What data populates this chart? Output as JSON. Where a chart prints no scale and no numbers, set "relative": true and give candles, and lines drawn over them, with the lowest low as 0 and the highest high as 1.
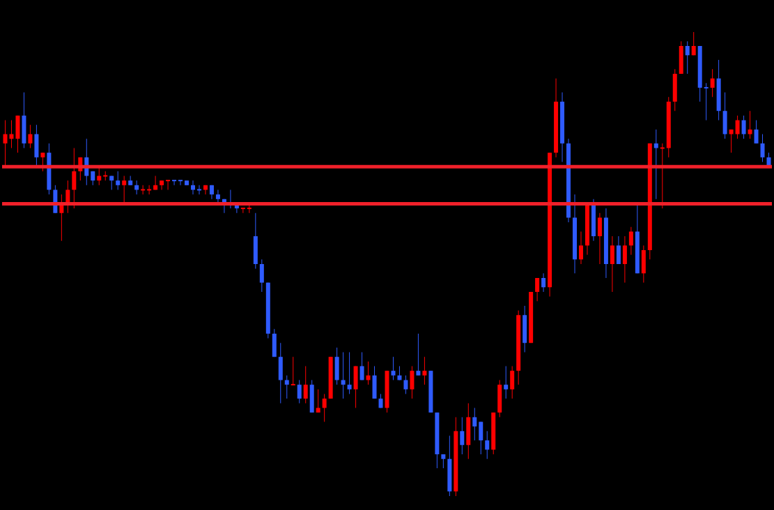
{
  "chart_data": {
    "type": "candlestick",
    "relative": true,
    "tick_labels": false,
    "categories": [
      null,
      null,
      null,
      null,
      null,
      null,
      null,
      null,
      null,
      null,
      null,
      null,
      null,
      null,
      null,
      null,
      null,
      null,
      null,
      null,
      null,
      null,
      null,
      null,
      null,
      null,
      null,
      null,
      null,
      null,
      null,
      null,
      null,
      null,
      null,
      null,
      null,
      null,
      null,
      null,
      null,
      null,
      null,
      null,
      null,
      null,
      null,
      null,
      null,
      null,
      null,
      null,
      null,
      null,
      null,
      null,
      null,
      null,
      null,
      null,
      null,
      null,
      null,
      null,
      null,
      null,
      null,
      null,
      null,
      null,
      null,
      null,
      null,
      null,
      null,
      null,
      null,
      null,
      null,
      null,
      null,
      null,
      null,
      null,
      null,
      null,
      null,
      null,
      null,
      null,
      null,
      null,
      null,
      null,
      null,
      null,
      null,
      null,
      null,
      null,
      null,
      null,
      null,
      null,
      null,
      null,
      null,
      null,
      null,
      null,
      null,
      null,
      null,
      null,
      null,
      null,
      null,
      null,
      null,
      null,
      null,
      null,
      null
    ],
    "ohlc": [
      [
        0.76,
        0.81,
        0.71,
        0.78
      ],
      [
        0.77,
        0.81,
        0.75,
        0.78
      ],
      [
        0.77,
        0.82,
        0.74,
        0.82
      ],
      [
        0.82,
        0.87,
        0.75,
        0.76
      ],
      [
        0.76,
        0.8,
        0.75,
        0.78
      ],
      [
        0.78,
        0.8,
        0.71,
        0.73
      ],
      [
        0.73,
        0.74,
        0.7,
        0.74
      ],
      [
        0.74,
        0.76,
        0.65,
        0.66
      ],
      [
        0.66,
        0.67,
        0.61,
        0.61
      ],
      [
        0.61,
        0.65,
        0.55,
        0.63
      ],
      [
        0.63,
        0.68,
        0.61,
        0.66
      ],
      [
        0.66,
        0.75,
        0.62,
        0.7
      ],
      [
        0.7,
        0.73,
        0.68,
        0.73
      ],
      [
        0.73,
        0.77,
        0.67,
        0.69
      ],
      [
        0.7,
        0.7,
        0.67,
        0.68
      ],
      [
        0.68,
        0.71,
        0.67,
        0.69
      ],
      [
        0.69,
        0.7,
        0.68,
        0.69
      ],
      [
        0.69,
        0.69,
        0.66,
        0.68
      ],
      [
        0.68,
        0.7,
        0.66,
        0.67
      ],
      [
        0.67,
        0.69,
        0.63,
        0.68
      ],
      [
        0.68,
        0.69,
        0.67,
        0.67
      ],
      [
        0.67,
        0.68,
        0.65,
        0.66
      ],
      [
        0.66,
        0.67,
        0.65,
        0.66
      ],
      [
        0.66,
        0.67,
        0.65,
        0.66
      ],
      [
        0.66,
        0.69,
        0.66,
        0.67
      ],
      [
        0.67,
        0.68,
        0.66,
        0.68
      ],
      [
        0.68,
        0.68,
        0.66,
        0.68
      ],
      [
        0.68,
        0.68,
        0.67,
        0.68
      ],
      [
        0.68,
        0.68,
        0.67,
        0.68
      ],
      [
        0.68,
        0.68,
        0.67,
        0.67
      ],
      [
        0.67,
        0.68,
        0.65,
        0.66
      ],
      [
        0.66,
        0.67,
        0.65,
        0.66
      ],
      [
        0.66,
        0.67,
        0.65,
        0.67
      ],
      [
        0.67,
        0.67,
        0.64,
        0.65
      ],
      [
        0.65,
        0.66,
        0.63,
        0.64
      ],
      [
        0.64,
        0.64,
        0.61,
        0.63
      ],
      [
        0.63,
        0.66,
        0.62,
        0.63
      ],
      [
        0.63,
        0.63,
        0.61,
        0.62
      ],
      [
        0.62,
        0.62,
        0.61,
        0.62
      ],
      [
        0.62,
        0.63,
        0.61,
        0.62
      ],
      [
        0.56,
        0.61,
        0.49,
        0.5
      ],
      [
        0.5,
        0.51,
        0.44,
        0.46
      ],
      [
        0.46,
        0.46,
        0.34,
        0.35
      ],
      [
        0.35,
        0.36,
        0.3,
        0.3
      ],
      [
        0.3,
        0.33,
        0.2,
        0.25
      ],
      [
        0.25,
        0.26,
        0.21,
        0.24
      ],
      [
        0.24,
        0.3,
        0.24,
        0.24
      ],
      [
        0.24,
        0.25,
        0.2,
        0.21
      ],
      [
        0.21,
        0.28,
        0.2,
        0.24
      ],
      [
        0.24,
        0.25,
        0.18,
        0.18
      ],
      [
        0.18,
        0.23,
        0.18,
        0.19
      ],
      [
        0.19,
        0.22,
        0.16,
        0.21
      ],
      [
        0.21,
        0.3,
        0.21,
        0.3
      ],
      [
        0.3,
        0.32,
        0.24,
        0.25
      ],
      [
        0.25,
        0.31,
        0.21,
        0.24
      ],
      [
        0.24,
        0.31,
        0.22,
        0.23
      ],
      [
        0.23,
        0.28,
        0.19,
        0.28
      ],
      [
        0.28,
        0.31,
        0.25,
        0.25
      ],
      [
        0.25,
        0.29,
        0.24,
        0.26
      ],
      [
        0.26,
        0.28,
        0.21,
        0.21
      ],
      [
        0.21,
        0.22,
        0.19,
        0.19
      ],
      [
        0.19,
        0.27,
        0.18,
        0.27
      ],
      [
        0.27,
        0.3,
        0.25,
        0.26
      ],
      [
        0.26,
        0.28,
        0.25,
        0.25
      ],
      [
        0.25,
        0.26,
        0.22,
        0.23
      ],
      [
        0.23,
        0.28,
        0.21,
        0.27
      ],
      [
        0.27,
        0.35,
        0.26,
        0.26
      ],
      [
        0.26,
        0.3,
        0.24,
        0.27
      ],
      [
        0.27,
        0.27,
        0.18,
        0.18
      ],
      [
        0.18,
        0.18,
        0.06,
        0.09
      ],
      [
        0.09,
        0.09,
        0.06,
        0.08
      ],
      [
        0.08,
        0.13,
        0,
        0.01
      ],
      [
        0.01,
        0.17,
        0,
        0.14
      ],
      [
        0.14,
        0.17,
        0.09,
        0.11
      ],
      [
        0.11,
        0.2,
        0.08,
        0.17
      ],
      [
        0.17,
        0.19,
        0.12,
        0.15
      ],
      [
        0.16,
        0.16,
        0.09,
        0.12
      ],
      [
        0.12,
        0.14,
        0.08,
        0.1
      ],
      [
        0.1,
        0.18,
        0.09,
        0.18
      ],
      [
        0.18,
        0.25,
        0.17,
        0.24
      ],
      [
        0.24,
        0.28,
        0.21,
        0.23
      ],
      [
        0.23,
        0.28,
        0.21,
        0.27
      ],
      [
        0.27,
        0.4,
        0.24,
        0.39
      ],
      [
        0.39,
        0.41,
        0.31,
        0.33
      ],
      [
        0.33,
        0.44,
        0.33,
        0.44
      ],
      [
        0.44,
        0.47,
        0.42,
        0.47
      ],
      [
        0.47,
        0.48,
        0.44,
        0.45
      ],
      [
        0.45,
        0.74,
        0.43,
        0.74
      ],
      [
        0.74,
        0.9,
        0.73,
        0.85
      ],
      [
        0.85,
        0.87,
        0.72,
        0.76
      ],
      [
        0.76,
        0.77,
        0.59,
        0.6
      ],
      [
        0.6,
        0.65,
        0.48,
        0.51
      ],
      [
        0.51,
        0.57,
        0.5,
        0.54
      ],
      [
        0.54,
        0.63,
        0.52,
        0.63
      ],
      [
        0.63,
        0.64,
        0.55,
        0.56
      ],
      [
        0.56,
        0.61,
        0.5,
        0.6
      ],
      [
        0.6,
        0.62,
        0.47,
        0.5
      ],
      [
        0.5,
        0.56,
        0.44,
        0.54
      ],
      [
        0.54,
        0.56,
        0.5,
        0.5
      ],
      [
        0.5,
        0.56,
        0.46,
        0.54
      ],
      [
        0.54,
        0.58,
        0.52,
        0.57
      ],
      [
        0.57,
        0.63,
        0.48,
        0.48
      ],
      [
        0.48,
        0.54,
        0.46,
        0.53
      ],
      [
        0.53,
        0.76,
        0.51,
        0.76
      ],
      [
        0.76,
        0.79,
        0.64,
        0.75
      ],
      [
        0.75,
        0.76,
        0.62,
        0.75
      ],
      [
        0.75,
        0.86,
        0.73,
        0.85
      ],
      [
        0.85,
        0.92,
        0.83,
        0.91
      ],
      [
        0.91,
        0.98,
        0.91,
        0.97
      ],
      [
        0.97,
        0.98,
        0.91,
        0.95
      ],
      [
        0.95,
        1,
        0.95,
        0.97
      ],
      [
        0.97,
        0.97,
        0.85,
        0.88
      ],
      [
        0.88,
        0.89,
        0.81,
        0.88
      ],
      [
        0.88,
        0.92,
        0.86,
        0.9
      ],
      [
        0.9,
        0.94,
        0.81,
        0.83
      ],
      [
        0.83,
        0.87,
        0.77,
        0.78
      ],
      [
        0.78,
        0.79,
        0.74,
        0.79
      ],
      [
        0.78,
        0.82,
        0.77,
        0.81
      ],
      [
        0.81,
        0.82,
        0.77,
        0.78
      ],
      [
        0.78,
        0.83,
        0.77,
        0.79
      ],
      [
        0.79,
        0.81,
        0.76,
        0.76
      ],
      [
        0.76,
        0.78,
        0.72,
        0.73
      ],
      [
        0.73,
        0.74,
        0.71,
        0.71
      ]
    ],
    "colors": [
      "#ff0000",
      "#ff0000",
      "#ff0000",
      "#2f5bff",
      "#ff0000",
      "#2f5bff",
      "#ff0000",
      "#2f5bff",
      "#2f5bff",
      "#ff0000",
      "#ff0000",
      "#ff0000",
      "#ff0000",
      "#2f5bff",
      "#2f5bff",
      "#ff0000",
      "#ff0000",
      "#2f5bff",
      "#2f5bff",
      "#ff0000",
      "#2f5bff",
      "#2f5bff",
      "#ff0000",
      "#ff0000",
      "#ff0000",
      "#ff0000",
      "#ff0000",
      "#2f5bff",
      "#2f5bff",
      "#2f5bff",
      "#2f5bff",
      "#2f5bff",
      "#ff0000",
      "#2f5bff",
      "#2f5bff",
      "#2f5bff",
      "#2f5bff",
      "#2f5bff",
      "#ff0000",
      "#ff0000",
      "#2f5bff",
      "#2f5bff",
      "#2f5bff",
      "#2f5bff",
      "#2f5bff",
      "#2f5bff",
      "#ff0000",
      "#2f5bff",
      "#ff0000",
      "#2f5bff",
      "#ff0000",
      "#ff0000",
      "#ff0000",
      "#2f5bff",
      "#2f5bff",
      "#2f5bff",
      "#ff0000",
      "#2f5bff",
      "#ff0000",
      "#2f5bff",
      "#2f5bff",
      "#ff0000",
      "#2f5bff",
      "#2f5bff",
      "#2f5bff",
      "#ff0000",
      "#2f5bff",
      "#ff0000",
      "#2f5bff",
      "#2f5bff",
      "#2f5bff",
      "#2f5bff",
      "#ff0000",
      "#2f5bff",
      "#ff0000",
      "#2f5bff",
      "#2f5bff",
      "#2f5bff",
      "#ff0000",
      "#ff0000",
      "#2f5bff",
      "#ff0000",
      "#ff0000",
      "#2f5bff",
      "#ff0000",
      "#ff0000",
      "#2f5bff",
      "#ff0000",
      "#ff0000",
      "#2f5bff",
      "#2f5bff",
      "#2f5bff",
      "#ff0000",
      "#ff0000",
      "#2f5bff",
      "#ff0000",
      "#2f5bff",
      "#ff0000",
      "#2f5bff",
      "#ff0000",
      "#ff0000",
      "#2f5bff",
      "#ff0000",
      "#ff0000",
      "#2f5bff",
      "#ff0000",
      "#ff0000",
      "#ff0000",
      "#ff0000",
      "#2f5bff",
      "#ff0000",
      "#2f5bff",
      "#2f5bff",
      "#ff0000",
      "#2f5bff",
      "#2f5bff",
      "#ff0000",
      "#ff0000",
      "#2f5bff",
      "#ff0000",
      "#2f5bff",
      "#2f5bff",
      "#2f5bff"
    ],
    "ref_lines": [
      {
        "axis": "y",
        "value": 0.71,
        "color": "#f0202a"
      },
      {
        "axis": "y",
        "value": 0.63,
        "color": "#f0202a"
      }
    ]
  }
}
